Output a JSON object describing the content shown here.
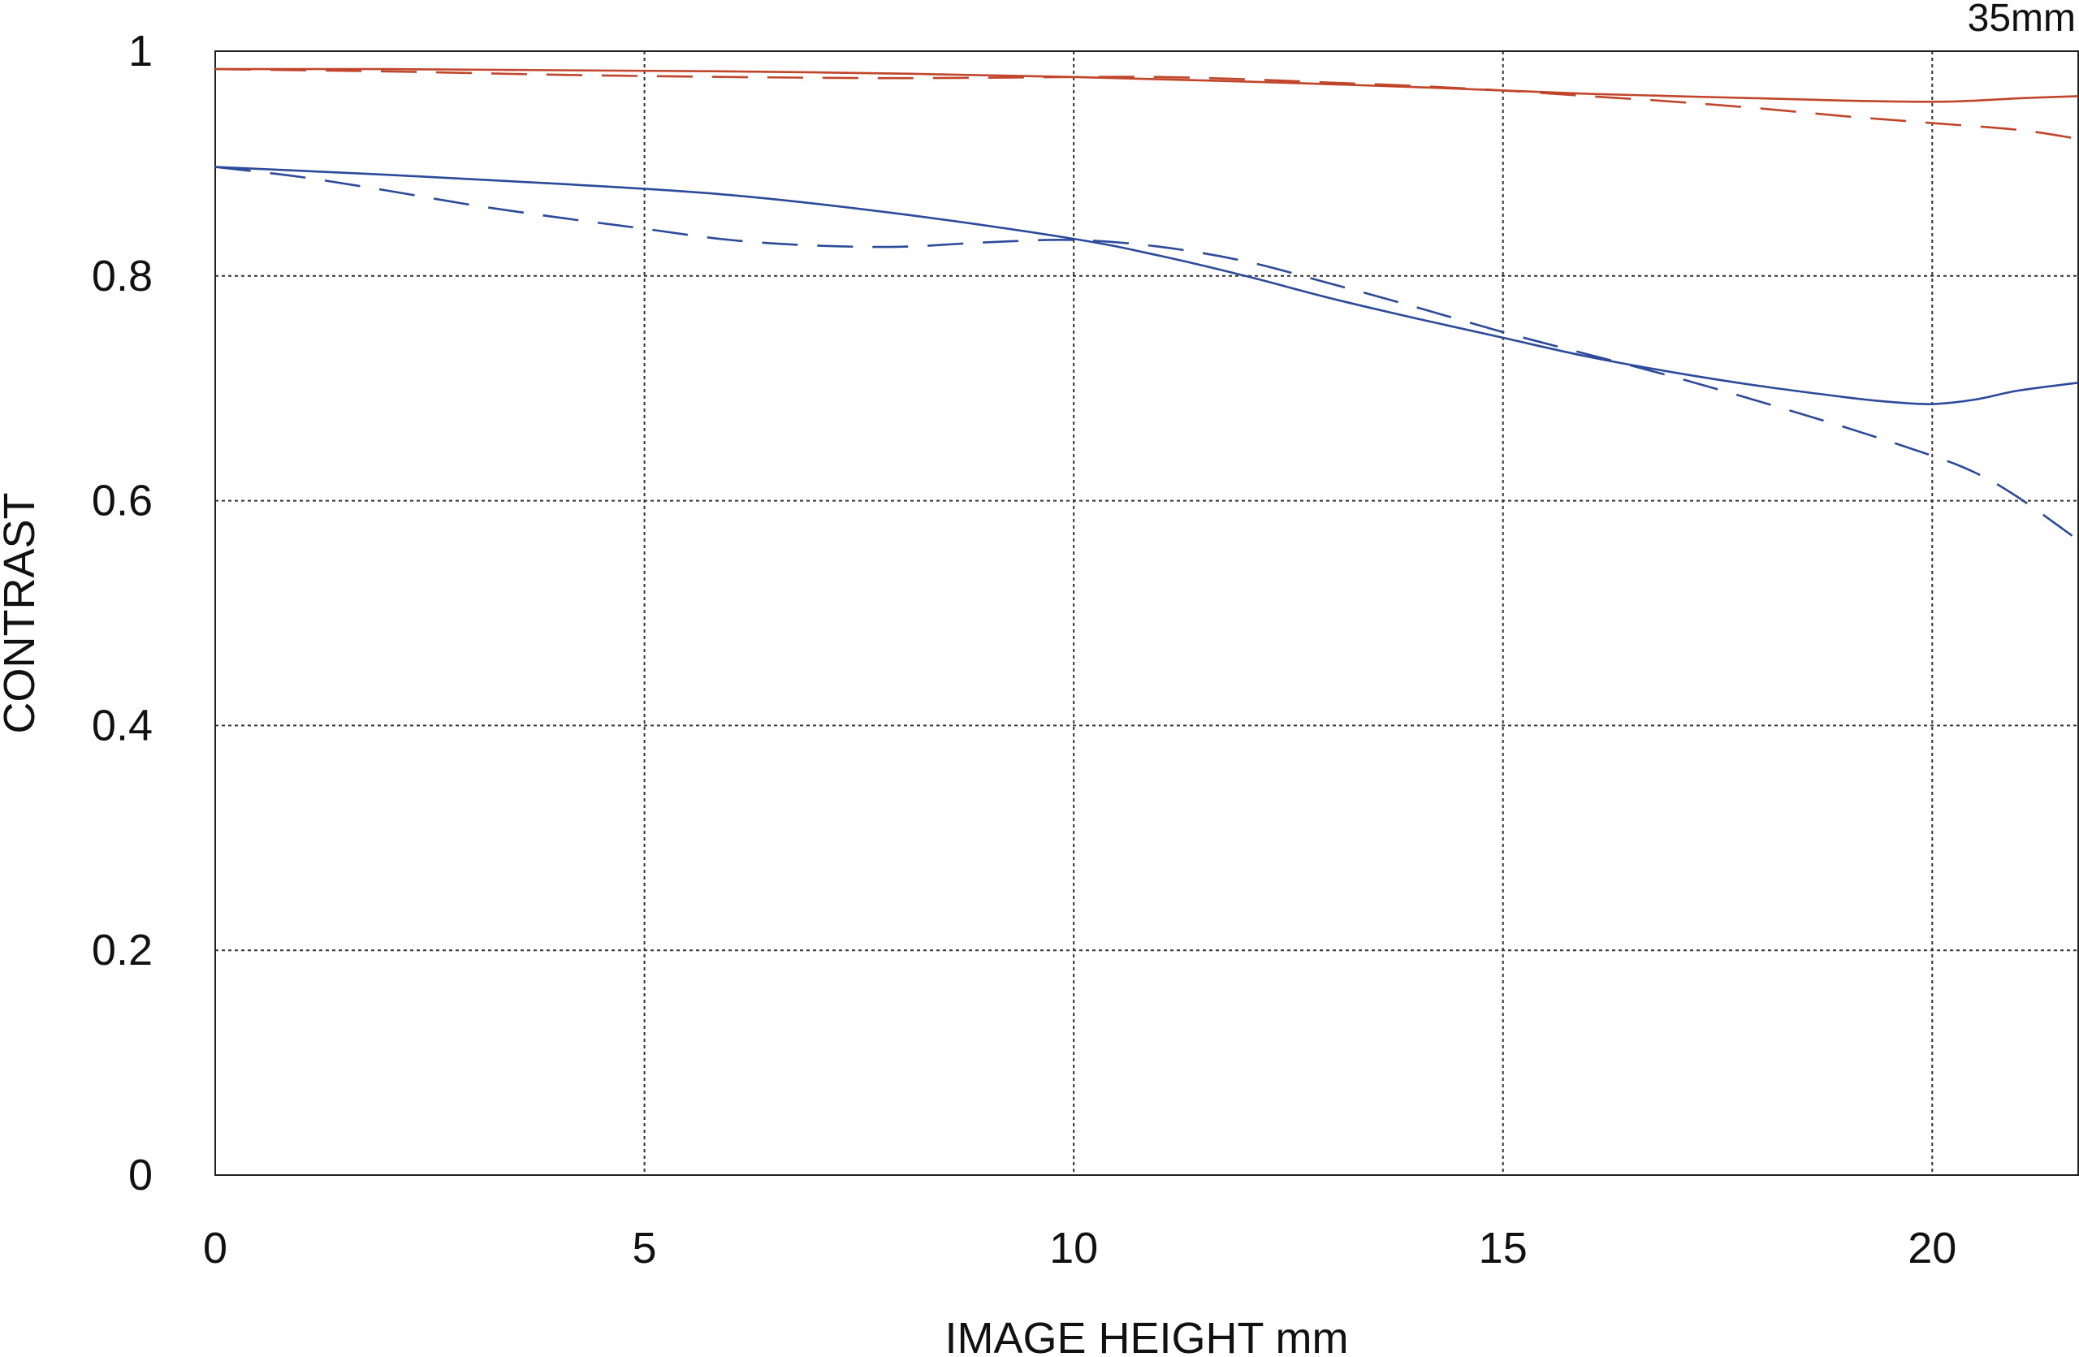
{
  "chart_data": {
    "type": "line",
    "corner_label": "35mm",
    "xlabel": "IMAGE HEIGHT  mm",
    "ylabel": "CONTRAST",
    "xlim": [
      0,
      21.7
    ],
    "ylim": [
      0,
      1
    ],
    "x_ticks": [
      0,
      5,
      10,
      15,
      20
    ],
    "y_ticks": [
      0,
      0.2,
      0.4,
      0.6,
      0.8,
      1
    ],
    "x_tick_labels": [
      "0",
      "5",
      "10",
      "15",
      "20"
    ],
    "y_tick_labels": [
      "0",
      "0.2",
      "0.4",
      "0.6",
      "0.8",
      "1"
    ],
    "grid": true,
    "series": [
      {
        "color": "#c0452a",
        "style": "solid",
        "x": [
          0,
          2,
          4,
          6,
          8,
          10,
          12,
          14,
          15,
          16,
          17,
          18,
          19,
          20,
          20.5,
          21,
          21.7
        ],
        "y": [
          0.984,
          0.984,
          0.983,
          0.982,
          0.98,
          0.977,
          0.973,
          0.968,
          0.965,
          0.962,
          0.96,
          0.958,
          0.956,
          0.955,
          0.956,
          0.958,
          0.96
        ]
      },
      {
        "color": "#c0452a",
        "style": "dashed",
        "x": [
          0,
          2,
          4,
          6,
          8,
          10,
          11,
          12,
          13,
          14,
          15,
          16,
          17,
          18,
          19,
          20,
          21,
          21.7
        ],
        "y": [
          0.984,
          0.982,
          0.979,
          0.977,
          0.976,
          0.977,
          0.977,
          0.975,
          0.972,
          0.969,
          0.965,
          0.96,
          0.955,
          0.949,
          0.942,
          0.936,
          0.93,
          0.922
        ]
      },
      {
        "color": "#2c4a9a",
        "style": "solid",
        "x": [
          0,
          2,
          4,
          6,
          8,
          10,
          11,
          12,
          13,
          14,
          15,
          16,
          17,
          18,
          19,
          19.5,
          20,
          20.5,
          21,
          21.7
        ],
        "y": [
          0.897,
          0.89,
          0.882,
          0.872,
          0.855,
          0.833,
          0.818,
          0.8,
          0.78,
          0.762,
          0.745,
          0.728,
          0.714,
          0.702,
          0.692,
          0.688,
          0.686,
          0.69,
          0.698,
          0.705
        ]
      },
      {
        "color": "#2c4a9a",
        "style": "dashed",
        "x": [
          0,
          1,
          2,
          3,
          4,
          5,
          6,
          7,
          8,
          9,
          10,
          11,
          12,
          13,
          14,
          15,
          16,
          17,
          18,
          19,
          20,
          20.5,
          21,
          21.7
        ],
        "y": [
          0.897,
          0.888,
          0.876,
          0.863,
          0.852,
          0.842,
          0.832,
          0.827,
          0.826,
          0.83,
          0.832,
          0.826,
          0.813,
          0.793,
          0.772,
          0.75,
          0.73,
          0.71,
          0.688,
          0.665,
          0.64,
          0.625,
          0.603,
          0.565
        ]
      }
    ]
  }
}
